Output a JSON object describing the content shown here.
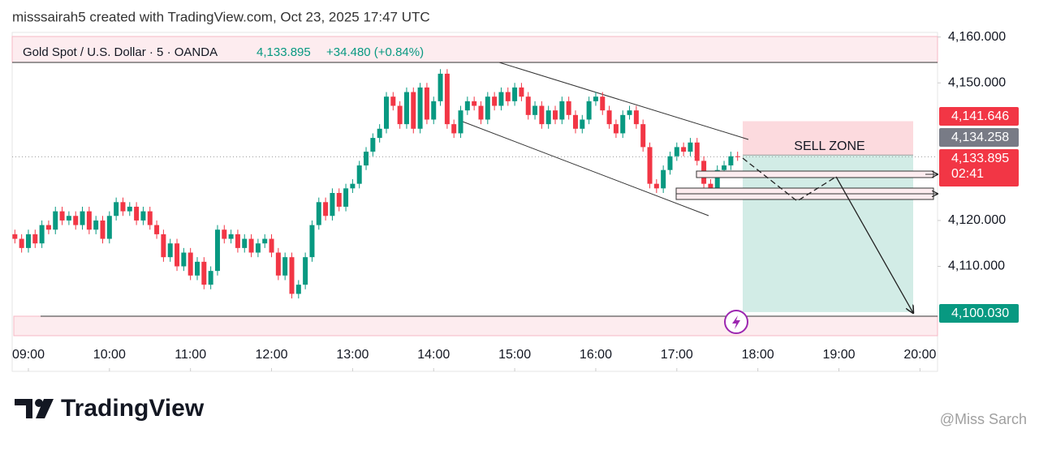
{
  "header": "misssairah5 created with TradingView.com, Oct 23, 2025 17:47 UTC",
  "footer": {
    "brand": "TradingView",
    "watermark": "@Miss Sarch"
  },
  "chart_data": {
    "type": "candlestick",
    "title": "Gold Spot / U.S. Dollar · 5 · OANDA",
    "last": {
      "value": 4133.895,
      "label": "4,133.895"
    },
    "change": "+34.480 (+0.84%)",
    "countdown": "02:41",
    "annotation": "SELL ZONE",
    "up_color": "#089981",
    "down_color": "#f23645",
    "x": [
      530,
      535,
      540,
      545,
      550,
      555,
      560,
      565,
      570,
      575,
      580,
      585,
      590,
      595,
      600,
      605,
      610,
      615,
      620,
      625,
      630,
      635,
      640,
      645,
      650,
      655,
      660,
      665,
      670,
      675,
      680,
      685,
      690,
      695,
      700,
      705,
      710,
      715,
      720,
      725,
      730,
      735,
      740,
      745,
      750,
      755,
      760,
      765,
      770,
      775,
      780,
      785,
      790,
      795,
      800,
      805,
      810,
      815,
      820,
      825,
      830,
      835,
      840,
      845,
      850,
      855,
      860,
      865,
      870,
      875,
      880,
      885,
      890,
      895,
      900,
      905,
      910,
      915,
      920,
      925,
      930,
      935,
      940,
      945,
      950,
      955,
      960,
      965,
      970,
      975,
      980,
      985,
      990,
      995,
      1000,
      1005,
      1010,
      1015,
      1020,
      1025,
      1030,
      1035,
      1040,
      1045,
      1050,
      1055,
      1060,
      1065
    ],
    "open": [
      4117,
      4116,
      4114,
      4117,
      4115,
      4119,
      4118,
      4122,
      4120,
      4121,
      4119,
      4122,
      4118,
      4120,
      4116,
      4121,
      4124,
      4122,
      4123,
      4120,
      4122,
      4119,
      4117,
      4112,
      4115,
      4110,
      4113,
      4108,
      4111,
      4106,
      4109,
      4118,
      4116,
      4117,
      4114,
      4116,
      4113,
      4115,
      4116,
      4113,
      4108,
      4112,
      4104,
      4106,
      4112,
      4119,
      4124,
      4121,
      4126,
      4123,
      4127,
      4128,
      4132,
      4135,
      4138,
      4140,
      4147,
      4145,
      4141,
      4148,
      4140,
      4149,
      4142,
      4146,
      4152,
      4141,
      4139,
      4144,
      4146,
      4145,
      4142,
      4147,
      4145,
      4148,
      4146,
      4149,
      4147,
      4143,
      4145,
      4141,
      4144,
      4142,
      4146,
      4143,
      4140,
      4142,
      4146,
      4147,
      4144,
      4141,
      4139,
      4143,
      4144,
      4141,
      4136,
      4128,
      4127,
      4131,
      4134,
      4136,
      4135,
      4137,
      4133,
      4128,
      4127,
      4131,
      4132,
      4134
    ],
    "high": [
      4118,
      4117,
      4118,
      4118,
      4120,
      4120,
      4123,
      4123,
      4122,
      4122,
      4123,
      4123,
      4121,
      4121,
      4122,
      4125,
      4125,
      4124,
      4124,
      4123,
      4123,
      4120,
      4118,
      4116,
      4116,
      4114,
      4114,
      4112,
      4112,
      4110,
      4119,
      4119,
      4118,
      4118,
      4117,
      4117,
      4116,
      4117,
      4117,
      4114,
      4113,
      4113,
      4107,
      4113,
      4120,
      4125,
      4125,
      4127,
      4127,
      4128,
      4129,
      4133,
      4136,
      4139,
      4141,
      4148,
      4148,
      4146,
      4149,
      4149,
      4150,
      4150,
      4147,
      4153,
      4153,
      4142,
      4145,
      4147,
      4147,
      4146,
      4148,
      4148,
      4149,
      4149,
      4150,
      4150,
      4148,
      4146,
      4146,
      4145,
      4145,
      4147,
      4147,
      4144,
      4143,
      4147,
      4148,
      4148,
      4145,
      4142,
      4144,
      4145,
      4145,
      4142,
      4137,
      4129,
      4132,
      4135,
      4137,
      4137,
      4138,
      4138,
      4134,
      4129,
      4132,
      4133,
      4135,
      4135
    ],
    "low": [
      4115,
      4113,
      4113,
      4114,
      4114,
      4117,
      4117,
      4119,
      4119,
      4118,
      4118,
      4117,
      4117,
      4115,
      4115,
      4120,
      4121,
      4121,
      4119,
      4119,
      4118,
      4116,
      4111,
      4111,
      4109,
      4109,
      4107,
      4107,
      4105,
      4105,
      4108,
      4115,
      4115,
      4113,
      4113,
      4112,
      4112,
      4114,
      4112,
      4107,
      4107,
      4103,
      4103,
      4105,
      4111,
      4118,
      4120,
      4120,
      4122,
      4122,
      4126,
      4127,
      4131,
      4134,
      4137,
      4139,
      4144,
      4140,
      4140,
      4139,
      4139,
      4141,
      4141,
      4145,
      4140,
      4138,
      4138,
      4143,
      4144,
      4141,
      4141,
      4144,
      4144,
      4145,
      4145,
      4146,
      4142,
      4142,
      4140,
      4140,
      4141,
      4141,
      4142,
      4139,
      4139,
      4141,
      4145,
      4143,
      4140,
      4138,
      4138,
      4142,
      4140,
      4135,
      4127,
      4126,
      4126,
      4130,
      4133,
      4134,
      4134,
      4132,
      4127,
      4126,
      4126,
      4130,
      4131,
      4133
    ],
    "close": [
      4116,
      4114,
      4117,
      4115,
      4119,
      4118,
      4122,
      4120,
      4121,
      4119,
      4122,
      4118,
      4120,
      4116,
      4121,
      4124,
      4122,
      4123,
      4120,
      4122,
      4119,
      4117,
      4112,
      4115,
      4110,
      4113,
      4108,
      4111,
      4106,
      4109,
      4118,
      4116,
      4117,
      4114,
      4116,
      4113,
      4115,
      4116,
      4113,
      4108,
      4112,
      4104,
      4106,
      4112,
      4119,
      4124,
      4121,
      4126,
      4123,
      4127,
      4128,
      4132,
      4135,
      4138,
      4140,
      4147,
      4145,
      4141,
      4148,
      4140,
      4149,
      4142,
      4146,
      4152,
      4141,
      4139,
      4144,
      4146,
      4145,
      4142,
      4147,
      4145,
      4148,
      4146,
      4149,
      4147,
      4143,
      4145,
      4141,
      4144,
      4142,
      4146,
      4143,
      4140,
      4142,
      4146,
      4147,
      4144,
      4141,
      4139,
      4143,
      4144,
      4141,
      4136,
      4128,
      4127,
      4131,
      4134,
      4136,
      4135,
      4137,
      4133,
      4128,
      4127,
      4131,
      4132,
      4134,
      4133.895
    ],
    "price_labels": [
      {
        "value": 4141.646,
        "label": "4,141.646",
        "color": "#f23645"
      },
      {
        "value": 4134.258,
        "label": "4,134.258",
        "color": "#787b86"
      },
      {
        "value": 4133.895,
        "label": "4,133.895",
        "color": "#f23645"
      },
      {
        "value": 4100.03,
        "label": "4,100.030",
        "color": "#089981"
      }
    ],
    "xlim": [
      528,
      1213
    ],
    "xticks": [
      {
        "value": 540,
        "label": "09:00"
      },
      {
        "value": 600,
        "label": "10:00"
      },
      {
        "value": 660,
        "label": "11:00"
      },
      {
        "value": 720,
        "label": "12:00"
      },
      {
        "value": 780,
        "label": "13:00"
      },
      {
        "value": 840,
        "label": "14:00"
      },
      {
        "value": 900,
        "label": "15:00"
      },
      {
        "value": 960,
        "label": "16:00"
      },
      {
        "value": 1020,
        "label": "17:00"
      },
      {
        "value": 1080,
        "label": "18:00"
      },
      {
        "value": 1140,
        "label": "19:00"
      },
      {
        "value": 1200,
        "label": "20:00"
      }
    ],
    "ylim": [
      4094,
      4161
    ],
    "yticks": [
      {
        "value": 4160,
        "label": "4,160.000"
      },
      {
        "value": 4150,
        "label": "4,150.000"
      },
      {
        "value": 4120,
        "label": "4,120.000"
      },
      {
        "value": 4110,
        "label": "4,110.000"
      }
    ]
  }
}
